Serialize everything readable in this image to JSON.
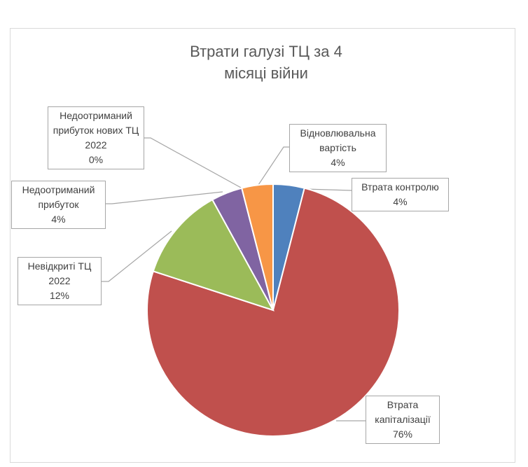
{
  "chart_data": {
    "type": "pie",
    "title": "Втрати галузі ТЦ за 4 місяці війни",
    "categories": [
      "Втрата контролю",
      "Втрата капіталізації",
      "Невідкриті ТЦ 2022",
      "Недоотриманий прибуток",
      "Недоотриманий прибуток нових ТЦ 2022",
      "Відновлювальна вартість"
    ],
    "values": [
      4,
      76,
      12,
      4,
      0,
      4
    ],
    "value_labels": [
      "4%",
      "76%",
      "12%",
      "4%",
      "0%",
      "4%"
    ],
    "colors": [
      "#4f81bd",
      "#c0504d",
      "#9bbb59",
      "#8064a2",
      "#4bacc6",
      "#f79646"
    ]
  }
}
